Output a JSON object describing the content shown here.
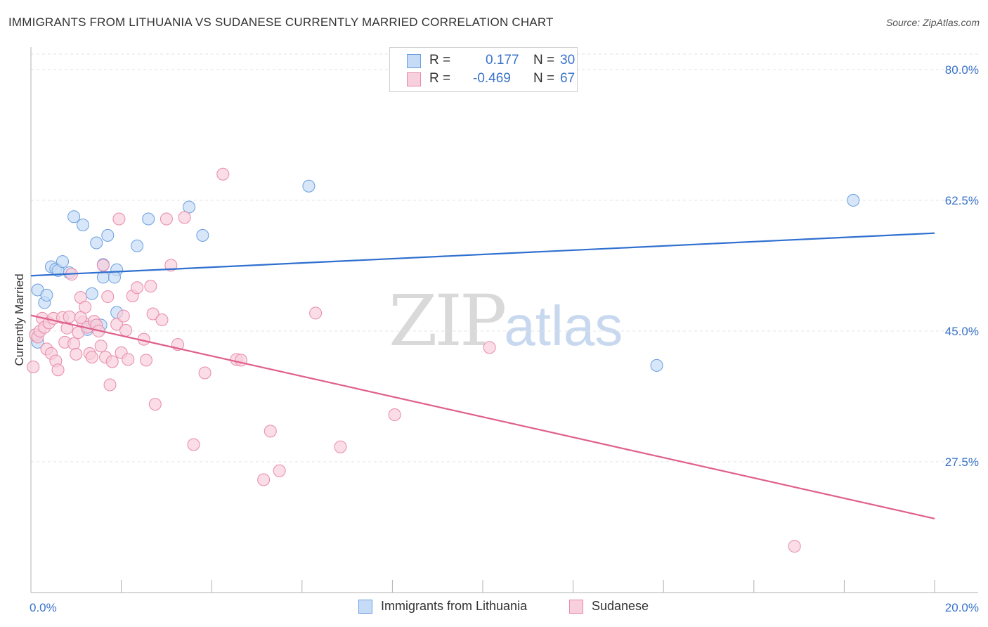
{
  "title": "IMMIGRANTS FROM LITHUANIA VS SUDANESE CURRENTLY MARRIED CORRELATION CHART",
  "source": "Source: ZipAtlas.com",
  "watermark": {
    "zip": "ZIP",
    "atlas": "atlas"
  },
  "legend": {
    "rows": [
      {
        "r_label": "R =",
        "r_value": "0.177",
        "n_label": "N =",
        "n_value": "30"
      },
      {
        "r_label": "R =",
        "r_value": "-0.469",
        "n_label": "N =",
        "n_value": "67"
      }
    ]
  },
  "chart_data": {
    "type": "scatter",
    "xlabel": "",
    "ylabel": "Currently Married",
    "xlim": [
      0,
      20
    ],
    "ylim": [
      10,
      83
    ],
    "x_ticks": [
      {
        "value": 0,
        "label": "0.0%"
      },
      {
        "value": 20,
        "label": "20.0%"
      }
    ],
    "y_ticks": [
      {
        "value": 80,
        "label": "80.0%"
      },
      {
        "value": 62.5,
        "label": "62.5%"
      },
      {
        "value": 45,
        "label": "45.0%"
      },
      {
        "value": 27.5,
        "label": "27.5%"
      }
    ],
    "grid": true,
    "legend_position": "bottom",
    "series": [
      {
        "name": "Immigrants from Lithuania",
        "color": "#6a9fe0",
        "fill": "#c6dbf5",
        "line_color": "#2f6fcf",
        "trend": [
          [
            0,
            52.4
          ],
          [
            20,
            58.1
          ]
        ],
        "points": [
          [
            0.15,
            43.5
          ],
          [
            0.15,
            50.5
          ],
          [
            0.3,
            48.8
          ],
          [
            0.35,
            49.8
          ],
          [
            0.45,
            53.6
          ],
          [
            0.55,
            53.3
          ],
          [
            0.6,
            53.1
          ],
          [
            0.7,
            54.3
          ],
          [
            0.85,
            52.8
          ],
          [
            0.95,
            60.3
          ],
          [
            1.15,
            59.2
          ],
          [
            1.45,
            56.8
          ],
          [
            1.6,
            53.9
          ],
          [
            1.6,
            52.2
          ],
          [
            1.7,
            57.8
          ],
          [
            1.35,
            50.0
          ],
          [
            1.3,
            45.6
          ],
          [
            1.55,
            45.8
          ],
          [
            1.9,
            53.2
          ],
          [
            1.85,
            52.2
          ],
          [
            1.9,
            47.5
          ],
          [
            2.35,
            56.4
          ],
          [
            2.6,
            60.0
          ],
          [
            3.5,
            61.6
          ],
          [
            3.8,
            57.8
          ],
          [
            6.15,
            64.4
          ],
          [
            13.85,
            40.4
          ],
          [
            18.2,
            62.5
          ],
          [
            0.1,
            44.5
          ],
          [
            1.25,
            45.2
          ]
        ]
      },
      {
        "name": "Sudanese",
        "color": "#e88aa8",
        "fill": "#f8cfdc",
        "line_color": "#e05f8c",
        "trend": [
          [
            0,
            47.1
          ],
          [
            20,
            19.9
          ]
        ],
        "points": [
          [
            0.05,
            40.2
          ],
          [
            0.1,
            44.5
          ],
          [
            0.15,
            44.2
          ],
          [
            0.2,
            45.0
          ],
          [
            0.25,
            46.7
          ],
          [
            0.3,
            45.5
          ],
          [
            0.35,
            42.6
          ],
          [
            0.4,
            46.1
          ],
          [
            0.45,
            42.0
          ],
          [
            0.5,
            46.7
          ],
          [
            0.55,
            41.0
          ],
          [
            0.6,
            39.8
          ],
          [
            0.7,
            46.8
          ],
          [
            0.75,
            43.5
          ],
          [
            0.8,
            45.4
          ],
          [
            0.85,
            46.9
          ],
          [
            0.9,
            52.6
          ],
          [
            0.95,
            43.3
          ],
          [
            1.0,
            41.9
          ],
          [
            1.05,
            44.8
          ],
          [
            1.1,
            49.5
          ],
          [
            1.15,
            46.2
          ],
          [
            1.2,
            48.2
          ],
          [
            1.25,
            45.5
          ],
          [
            1.3,
            42.0
          ],
          [
            1.35,
            41.5
          ],
          [
            1.4,
            46.3
          ],
          [
            1.45,
            45.8
          ],
          [
            1.5,
            45.0
          ],
          [
            1.55,
            43.0
          ],
          [
            1.6,
            53.8
          ],
          [
            1.65,
            41.5
          ],
          [
            1.7,
            49.6
          ],
          [
            1.75,
            37.8
          ],
          [
            1.8,
            40.9
          ],
          [
            1.9,
            45.9
          ],
          [
            1.95,
            60.0
          ],
          [
            2.0,
            42.1
          ],
          [
            2.05,
            47.0
          ],
          [
            2.1,
            45.1
          ],
          [
            2.15,
            41.2
          ],
          [
            2.25,
            49.7
          ],
          [
            2.35,
            50.8
          ],
          [
            2.5,
            43.9
          ],
          [
            2.55,
            41.1
          ],
          [
            2.65,
            51.0
          ],
          [
            2.7,
            47.3
          ],
          [
            2.75,
            35.2
          ],
          [
            2.9,
            46.5
          ],
          [
            3.0,
            60.0
          ],
          [
            3.1,
            53.8
          ],
          [
            3.25,
            43.2
          ],
          [
            3.4,
            60.2
          ],
          [
            3.6,
            29.8
          ],
          [
            3.85,
            39.4
          ],
          [
            4.25,
            66.0
          ],
          [
            4.55,
            41.2
          ],
          [
            4.65,
            41.1
          ],
          [
            5.15,
            25.1
          ],
          [
            5.3,
            31.6
          ],
          [
            5.5,
            26.3
          ],
          [
            6.3,
            47.4
          ],
          [
            6.85,
            29.5
          ],
          [
            8.05,
            33.8
          ],
          [
            10.15,
            42.8
          ],
          [
            16.9,
            16.2
          ],
          [
            1.1,
            46.8
          ]
        ]
      }
    ]
  }
}
